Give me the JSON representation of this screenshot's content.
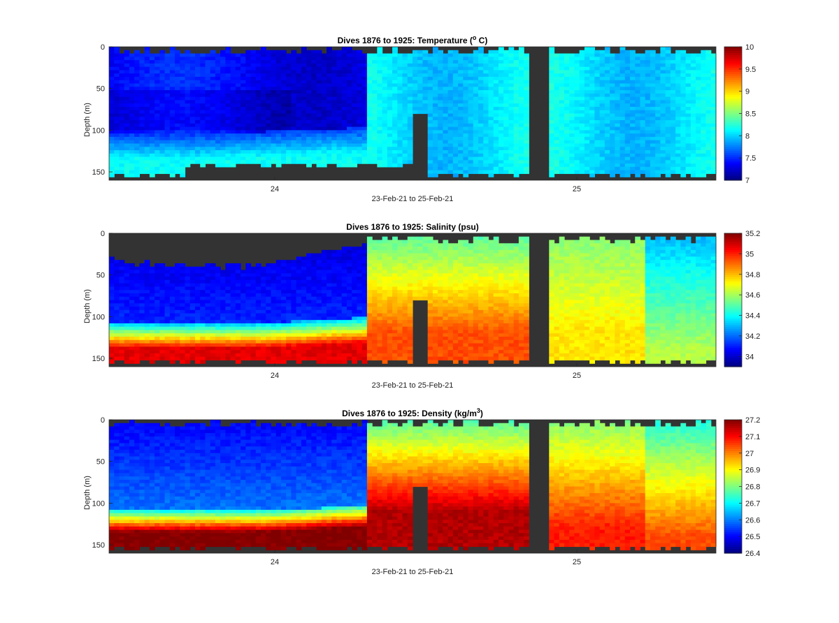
{
  "chart_data": [
    {
      "type": "heatmap",
      "title_main": "Dives 1876 to 1925: Temperature (",
      "title_sup": "o",
      "title_end": " C)",
      "xlabel": "23-Feb-21 to 25-Feb-21",
      "ylabel": "Depth (m)",
      "x_ticks": [
        "24",
        "25"
      ],
      "y_ticks": [
        "0",
        "50",
        "100",
        "150"
      ],
      "ylim": [
        0,
        160
      ],
      "colorbar_range": [
        7,
        10
      ],
      "colorbar_ticks": [
        "7",
        "7.5",
        "8",
        "8.5",
        "9",
        "9.5",
        "10"
      ],
      "colormap": "jet"
    },
    {
      "type": "heatmap",
      "title_main": "Dives 1876 to 1925: Salinity (psu)",
      "title_sup": "",
      "title_end": "",
      "xlabel": "23-Feb-21 to 25-Feb-21",
      "ylabel": "Depth (m)",
      "x_ticks": [
        "24",
        "25"
      ],
      "y_ticks": [
        "0",
        "50",
        "100",
        "150"
      ],
      "ylim": [
        0,
        160
      ],
      "colorbar_range": [
        33.9,
        35.2
      ],
      "colorbar_ticks": [
        "34",
        "34.2",
        "34.4",
        "34.6",
        "34.8",
        "35",
        "35.2"
      ],
      "colormap": "jet"
    },
    {
      "type": "heatmap",
      "title_main": "Dives 1876 to 1925: Density (kg/m",
      "title_sup": "3",
      "title_end": ")",
      "xlabel": "23-Feb-21 to 25-Feb-21",
      "ylabel": "Depth (m)",
      "x_ticks": [
        "24",
        "25"
      ],
      "y_ticks": [
        "0",
        "50",
        "100",
        "150"
      ],
      "ylim": [
        0,
        160
      ],
      "colorbar_range": [
        26.4,
        27.2
      ],
      "colorbar_ticks": [
        "26.4",
        "26.5",
        "26.6",
        "26.7",
        "26.8",
        "26.9",
        "27",
        "27.1",
        "27.2"
      ],
      "colormap": "jet"
    }
  ],
  "colors": {
    "missing": "#333333",
    "background": "#ffffff"
  }
}
